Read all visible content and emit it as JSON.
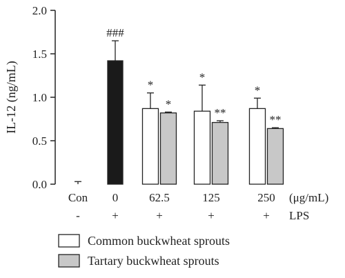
{
  "chart_data": {
    "type": "bar",
    "ylabel": "IL-12 (ng/mL)",
    "ylim": [
      0,
      2.0
    ],
    "yticks": [
      "0.0",
      "0.5",
      "1.0",
      "1.5",
      "2.0"
    ],
    "ytick_values": [
      0,
      0.5,
      1.0,
      1.5,
      2.0
    ],
    "unit_label": "(μg/mL)",
    "lps_label": "LPS",
    "groups": [
      {
        "label": "Con",
        "lps": "-"
      },
      {
        "label": "0",
        "lps": "+"
      },
      {
        "label": "62.5",
        "lps": "+"
      },
      {
        "label": "125",
        "lps": "+"
      },
      {
        "label": "250",
        "lps": "+"
      }
    ],
    "series": [
      {
        "name": "Common buckwheat sprouts",
        "color": "#ffffff",
        "values": [
          0.01,
          1.42,
          0.87,
          0.84,
          0.87
        ],
        "errors": [
          0.02,
          0.23,
          0.18,
          0.3,
          0.12
        ],
        "annotations": [
          "",
          "###",
          "*",
          "*",
          "*"
        ]
      },
      {
        "name": "Tartary buckwheat sprouts",
        "color": "#c8c8c8",
        "values": [
          null,
          null,
          0.82,
          0.71,
          0.64
        ],
        "errors": [
          null,
          null,
          0.01,
          0.02,
          0.01
        ],
        "annotations": [
          "",
          "",
          "*",
          "**",
          "**"
        ]
      }
    ],
    "control_bar_color": "#1a1a1a"
  }
}
